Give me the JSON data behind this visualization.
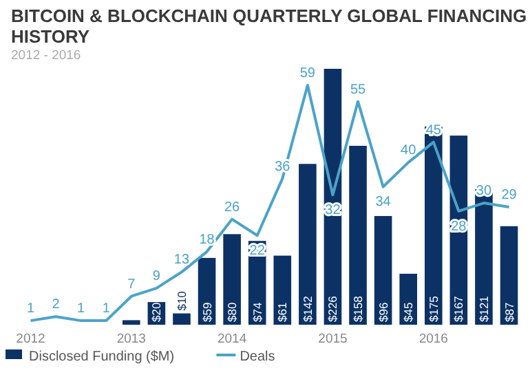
{
  "chart_data": {
    "type": "bar",
    "title": "BITCOIN & BLOCKCHAIN QUARTERLY GLOBAL FINANCING HISTORY",
    "subtitle": "2012 - 2016",
    "categories": [
      "2012",
      null,
      null,
      null,
      "2013",
      null,
      null,
      null,
      "2014",
      null,
      null,
      null,
      "2015",
      null,
      null,
      null,
      "2016",
      null,
      null,
      null
    ],
    "series": [
      {
        "name": "Disclosed Funding ($M)",
        "color": "#0c3265",
        "values": [
          null,
          null,
          null,
          null,
          4,
          20,
          10,
          59,
          80,
          74,
          61,
          142,
          226,
          158,
          96,
          45,
          175,
          167,
          121,
          87
        ],
        "value_labels": [
          null,
          null,
          null,
          null,
          null,
          "$20",
          "$10",
          "$59",
          "$80",
          "$74",
          "$61",
          "$142",
          "$226",
          "$158",
          "$96",
          "$45",
          "$175",
          "$167",
          "$121",
          "$87"
        ]
      },
      {
        "name": "Deals",
        "type": "line",
        "axis": "y2",
        "color": "#4ba3c9",
        "values": [
          1,
          2,
          1,
          1,
          7,
          9,
          13,
          18,
          26,
          22,
          36,
          59,
          32,
          55,
          34,
          40,
          45,
          28,
          30,
          29
        ],
        "value_labels": [
          "1",
          "2",
          "1",
          "1",
          "7",
          "9",
          "13",
          "18",
          "26",
          "22",
          "36",
          "59",
          "32",
          "55",
          "34",
          "40",
          "45",
          "28",
          "30",
          "29"
        ]
      }
    ],
    "legend": "bottom left",
    "tick_labels": "x"
  }
}
